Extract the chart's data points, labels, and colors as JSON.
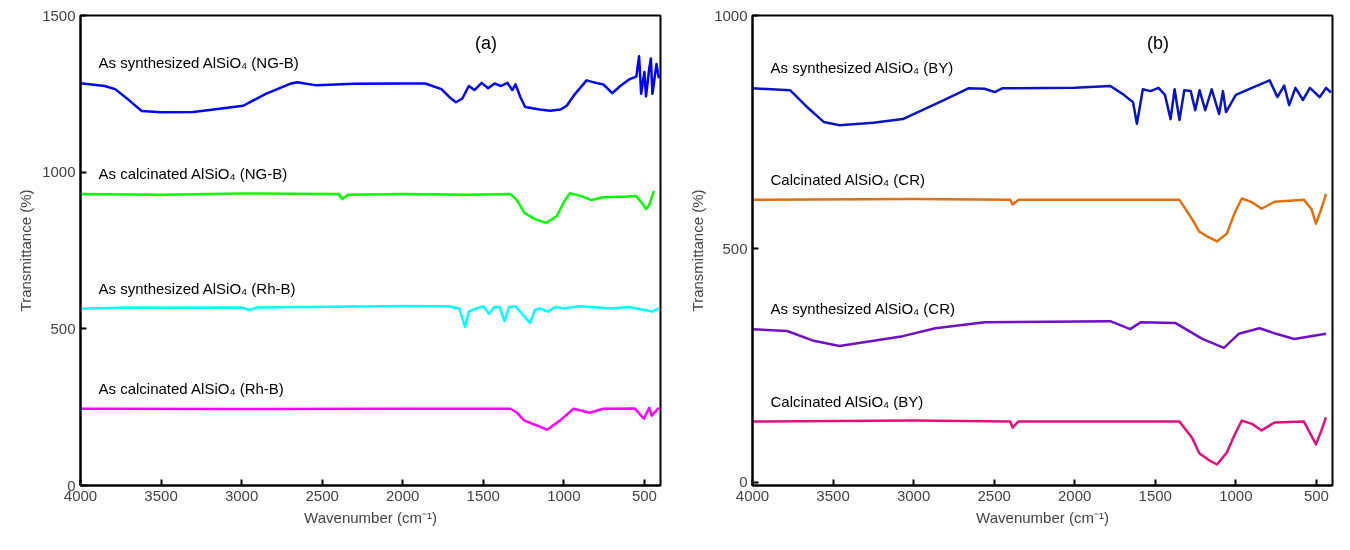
{
  "chart_data": [
    {
      "type": "line",
      "xlabel": "Wavenumber (cm⁻¹)",
      "ylabel": "Transmittance (%)",
      "xlim": [
        4000,
        400
      ],
      "xticks": [
        4000,
        3500,
        3000,
        2500,
        2000,
        1500,
        1000,
        500
      ],
      "ylim": [
        0,
        1500
      ],
      "yticks": [
        0,
        500,
        1000,
        1500
      ],
      "grid": false,
      "annotations": [
        "(a)"
      ],
      "series": [
        {
          "name": "As synthesized AlSiO₄ (NG-B)",
          "color": "#0000ff",
          "x": [
            4000,
            3850,
            3785,
            3700,
            3620,
            3500,
            3300,
            3100,
            2990,
            2850,
            2700,
            2655,
            2535,
            2300,
            2000,
            1860,
            1760,
            1700,
            1670,
            1630,
            1590,
            1555,
            1510,
            1470,
            1430,
            1390,
            1350,
            1320,
            1300,
            1270,
            1240,
            1150,
            1085,
            1020,
            982,
            930,
            859,
            800,
            755,
            700,
            650,
            595,
            550,
            533,
            520,
            500,
            490,
            470,
            460,
            450,
            441,
            425,
            410
          ],
          "values": [
            1284,
            1275,
            1265,
            1230,
            1195,
            1191,
            1192,
            1205,
            1212,
            1250,
            1282,
            1287,
            1277,
            1282,
            1283,
            1283,
            1265,
            1235,
            1223,
            1235,
            1275,
            1262,
            1285,
            1268,
            1283,
            1275,
            1285,
            1262,
            1280,
            1240,
            1208,
            1200,
            1196,
            1200,
            1212,
            1250,
            1293,
            1285,
            1280,
            1252,
            1275,
            1296,
            1305,
            1370,
            1250,
            1320,
            1242,
            1330,
            1363,
            1250,
            1284,
            1345,
            1300
          ]
        },
        {
          "name": "As calcinated AlSiO₄ (NG-B)",
          "color": "#00ff00",
          "x": [
            4000,
            3500,
            3000,
            2400,
            2374,
            2340,
            2000,
            1600,
            1331,
            1290,
            1245,
            1180,
            1110,
            1043,
            1000,
            963,
            900,
            828,
            755,
            600,
            552,
            520,
            490,
            470,
            441
          ],
          "values": [
            930,
            928,
            932,
            930,
            914,
            928,
            930,
            928,
            930,
            910,
            870,
            850,
            838,
            860,
            905,
            933,
            925,
            911,
            920,
            922,
            924,
            905,
            882,
            895,
            940
          ]
        },
        {
          "name": "As synthesized AlSiO₄ (Rh-B)",
          "color": "#00ffff",
          "x": [
            4000,
            3700,
            3500,
            3000,
            2950,
            2900,
            2000,
            1718,
            1650,
            1613,
            1590,
            1560,
            1500,
            1465,
            1430,
            1400,
            1368,
            1340,
            1300,
            1260,
            1209,
            1180,
            1150,
            1100,
            1050,
            1000,
            900,
            700,
            600,
            500,
            450,
            410
          ],
          "values": [
            564,
            568,
            567,
            568,
            560,
            568,
            573,
            572,
            565,
            506,
            555,
            562,
            572,
            548,
            570,
            570,
            525,
            570,
            572,
            548,
            519,
            560,
            565,
            555,
            570,
            565,
            572,
            565,
            570,
            560,
            555,
            565
          ]
        },
        {
          "name": "As calcinated AlSiO₄ (Rh-B)",
          "color": "#ff00ff",
          "x": [
            4000,
            3000,
            2000,
            1331,
            1290,
            1245,
            1160,
            1104,
            1025,
            939,
            840,
            755,
            560,
            503,
            470,
            455,
            410
          ],
          "values": [
            245,
            244,
            245,
            245,
            232,
            207,
            190,
            178,
            207,
            245,
            232,
            245,
            246,
            213,
            248,
            223,
            248
          ]
        }
      ]
    },
    {
      "type": "line",
      "xlabel": "Wavenumber (cm⁻¹)",
      "ylabel": "Transmittance (%)",
      "xlim": [
        4000,
        400
      ],
      "xticks": [
        4000,
        3500,
        3000,
        2500,
        2000,
        1500,
        1000,
        500
      ],
      "ylim": [
        -7,
        1000
      ],
      "yticks": [
        0,
        500,
        1000
      ],
      "grid": false,
      "annotations": [
        "(b)"
      ],
      "series": [
        {
          "name": "As synthesized AlSiO₄ (BY)",
          "color": "#0a14c0",
          "x": [
            4000,
            3767,
            3662,
            3558,
            3460,
            3250,
            3067,
            2822,
            2660,
            2560,
            2497,
            2450,
            2000,
            1779,
            1699,
            1638,
            1614,
            1577,
            1530,
            1480,
            1440,
            1405,
            1380,
            1350,
            1320,
            1280,
            1252,
            1225,
            1190,
            1150,
            1104,
            1080,
            1061,
            1000,
            900,
            790,
            742,
            700,
            669,
            630,
            583,
            540,
            480,
            440,
            410
          ],
          "values": [
            844,
            840,
            804,
            772,
            765,
            770,
            778,
            817,
            844,
            843,
            836,
            844,
            845,
            849,
            831,
            814,
            768,
            842,
            838,
            845,
            830,
            778,
            842,
            776,
            840,
            838,
            797,
            840,
            797,
            842,
            789,
            838,
            793,
            830,
            845,
            861,
            825,
            850,
            808,
            845,
            819,
            845,
            825,
            845,
            835
          ]
        },
        {
          "name": "Calcinated AlSiO₄ (CR)",
          "color": "#e07010",
          "x": [
            4000,
            3000,
            2400,
            2386,
            2350,
            1350,
            1270,
            1227,
            1170,
            1117,
            1055,
            1010,
            963,
            900,
            840,
            760,
            577,
            530,
            503,
            470,
            440
          ],
          "values": [
            605,
            607,
            605,
            595,
            605,
            605,
            563,
            537,
            525,
            516,
            533,
            575,
            608,
            600,
            586,
            601,
            605,
            585,
            554,
            585,
            618
          ]
        },
        {
          "name": "As synthesized AlSiO₄ (CR)",
          "color": "#7010c8",
          "x": [
            4000,
            3785,
            3620,
            3460,
            3067,
            2865,
            2558,
            1779,
            1656,
            1589,
            1374,
            1208,
            1074,
            982,
            853,
            750,
            638,
            534,
            440
          ],
          "values": [
            328,
            324,
            303,
            292,
            313,
            330,
            343,
            345,
            328,
            343,
            341,
            307,
            288,
            318,
            330,
            318,
            307,
            313,
            318
          ]
        },
        {
          "name": "Calcinated AlSiO₄ (BY)",
          "color": "#e0107a",
          "x": [
            4000,
            3000,
            2400,
            2386,
            2350,
            1350,
            1270,
            1227,
            1170,
            1117,
            1055,
            1010,
            963,
            900,
            840,
            760,
            577,
            503,
            470,
            440
          ],
          "values": [
            130,
            132,
            130,
            117,
            130,
            130,
            94,
            62,
            48,
            38,
            64,
            100,
            132,
            125,
            111,
            128,
            130,
            81,
            110,
            139
          ]
        }
      ]
    }
  ]
}
